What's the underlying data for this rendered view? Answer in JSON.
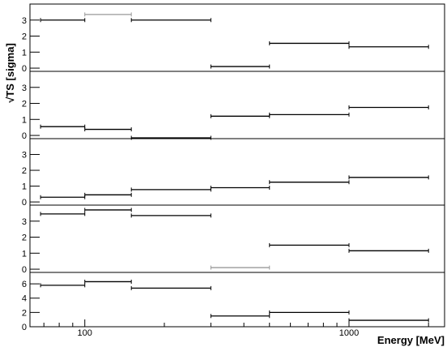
{
  "chart_data": [
    {
      "type": "line",
      "panel": 1,
      "ylim": [
        -0.2,
        4.0
      ],
      "yticks": [
        0,
        1,
        2,
        3
      ],
      "segments": [
        {
          "x0": 68,
          "x1": 100,
          "y": 3.0,
          "color": "#000000"
        },
        {
          "x0": 100,
          "x1": 150,
          "y": 3.35,
          "color": "#999999"
        },
        {
          "x0": 150,
          "x1": 300,
          "y": 3.0,
          "color": "#000000"
        },
        {
          "x0": 300,
          "x1": 500,
          "y": 0.1,
          "color": "#000000"
        },
        {
          "x0": 500,
          "x1": 1000,
          "y": 1.55,
          "color": "#000000"
        },
        {
          "x0": 1000,
          "x1": 2000,
          "y": 1.33,
          "color": "#000000"
        }
      ]
    },
    {
      "type": "line",
      "panel": 2,
      "ylim": [
        -0.2,
        4.0
      ],
      "yticks": [
        0,
        1,
        2,
        3
      ],
      "segments": [
        {
          "x0": 68,
          "x1": 100,
          "y": 0.55,
          "color": "#000000"
        },
        {
          "x0": 100,
          "x1": 150,
          "y": 0.38,
          "color": "#000000"
        },
        {
          "x0": 150,
          "x1": 300,
          "y": -0.15,
          "color": "#000000"
        },
        {
          "x0": 300,
          "x1": 500,
          "y": 1.2,
          "color": "#000000"
        },
        {
          "x0": 500,
          "x1": 1000,
          "y": 1.3,
          "color": "#000000"
        },
        {
          "x0": 1000,
          "x1": 2000,
          "y": 1.75,
          "color": "#000000"
        }
      ]
    },
    {
      "type": "line",
      "panel": 3,
      "ylim": [
        -0.2,
        4.0
      ],
      "yticks": [
        0,
        1,
        2,
        3
      ],
      "segments": [
        {
          "x0": 68,
          "x1": 100,
          "y": 0.3,
          "color": "#000000"
        },
        {
          "x0": 100,
          "x1": 150,
          "y": 0.45,
          "color": "#000000"
        },
        {
          "x0": 150,
          "x1": 300,
          "y": 0.78,
          "color": "#000000"
        },
        {
          "x0": 300,
          "x1": 500,
          "y": 0.9,
          "color": "#000000"
        },
        {
          "x0": 500,
          "x1": 1000,
          "y": 1.25,
          "color": "#000000"
        },
        {
          "x0": 1000,
          "x1": 2000,
          "y": 1.55,
          "color": "#000000"
        }
      ]
    },
    {
      "type": "line",
      "panel": 4,
      "ylim": [
        -0.2,
        4.0
      ],
      "yticks": [
        0,
        1,
        2,
        3
      ],
      "segments": [
        {
          "x0": 68,
          "x1": 100,
          "y": 3.45,
          "color": "#000000"
        },
        {
          "x0": 100,
          "x1": 150,
          "y": 3.7,
          "color": "#000000"
        },
        {
          "x0": 150,
          "x1": 300,
          "y": 3.35,
          "color": "#000000"
        },
        {
          "x0": 300,
          "x1": 500,
          "y": 0.1,
          "color": "#999999"
        },
        {
          "x0": 500,
          "x1": 1000,
          "y": 1.5,
          "color": "#000000"
        },
        {
          "x0": 1000,
          "x1": 2000,
          "y": 1.15,
          "color": "#000000"
        }
      ]
    },
    {
      "type": "line",
      "panel": 5,
      "ylim": [
        0,
        7.6
      ],
      "yticks": [
        0,
        2,
        4,
        6
      ],
      "segments": [
        {
          "x0": 68,
          "x1": 100,
          "y": 5.8,
          "color": "#000000"
        },
        {
          "x0": 100,
          "x1": 150,
          "y": 6.3,
          "color": "#000000"
        },
        {
          "x0": 150,
          "x1": 300,
          "y": 5.4,
          "color": "#000000"
        },
        {
          "x0": 300,
          "x1": 500,
          "y": 1.5,
          "color": "#000000"
        },
        {
          "x0": 500,
          "x1": 1000,
          "y": 2.0,
          "color": "#000000"
        },
        {
          "x0": 1000,
          "x1": 2000,
          "y": 0.9,
          "color": "#000000"
        }
      ]
    }
  ],
  "axes": {
    "x_scale": "log",
    "xlim": [
      62,
      2300
    ],
    "x_tick_labels": [
      {
        "value": 100,
        "label": "100"
      },
      {
        "value": 1000,
        "label": "1000"
      }
    ],
    "xlabel": "Energy [MeV]",
    "ylabel": "√TS  [sigma]"
  }
}
